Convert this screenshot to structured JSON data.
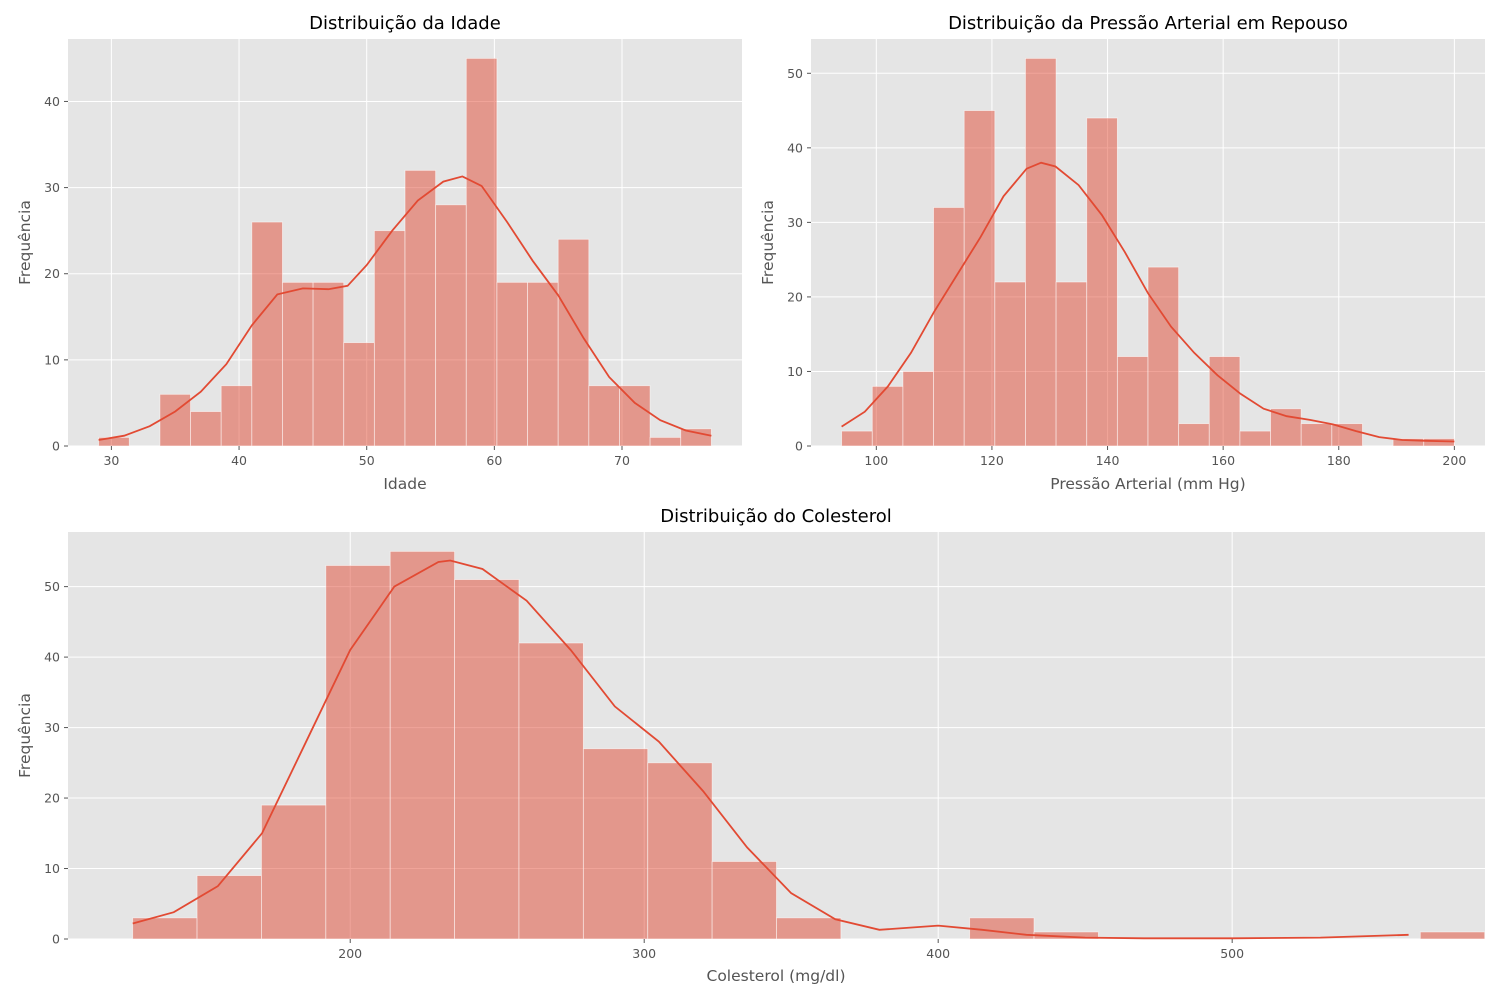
{
  "chart_data": [
    {
      "type": "bar",
      "subtype": "histogram",
      "title": "Distribuição da Idade",
      "xlabel": "Idade",
      "ylabel": "Frequência",
      "xlim": [
        26.6,
        79.4
      ],
      "ylim": [
        0,
        47.25
      ],
      "xticks": [
        30,
        40,
        50,
        60,
        70
      ],
      "yticks": [
        0,
        10,
        20,
        30,
        40
      ],
      "bin_start": 29,
      "bin_width": 2.4,
      "values": [
        1,
        0,
        6,
        4,
        7,
        26,
        19,
        19,
        12,
        25,
        32,
        28,
        45,
        19,
        19,
        24,
        7,
        7,
        1,
        2
      ],
      "kde": {
        "x": [
          29,
          31,
          33,
          35,
          37,
          39,
          41,
          43,
          45,
          47,
          48.5,
          50,
          52,
          54,
          56,
          57.5,
          59,
          61,
          63,
          65,
          67,
          69,
          71,
          73,
          75,
          77
        ],
        "y": [
          0.7,
          1.2,
          2.3,
          4.0,
          6.3,
          9.5,
          14.0,
          17.6,
          18.3,
          18.2,
          18.6,
          21,
          25,
          28.5,
          30.7,
          31.3,
          30.2,
          26,
          21.5,
          17.5,
          12.5,
          8,
          5,
          3,
          1.8,
          1.2
        ]
      }
    },
    {
      "type": "bar",
      "subtype": "histogram",
      "title": "Distribuição da Pressão Arterial em Repouso",
      "xlabel": "Pressão Arterial (mm Hg)",
      "ylabel": "Frequência",
      "xlim": [
        88.7,
        205.3
      ],
      "ylim": [
        0,
        54.6
      ],
      "xticks": [
        100,
        120,
        140,
        160,
        180,
        200
      ],
      "yticks": [
        0,
        10,
        20,
        30,
        40,
        50
      ],
      "bin_start": 94,
      "bin_width": 5.3,
      "values": [
        2,
        8,
        10,
        32,
        45,
        22,
        52,
        22,
        44,
        12,
        24,
        3,
        12,
        2,
        5,
        3,
        3,
        0,
        1,
        1
      ],
      "kde": {
        "x": [
          94,
          98,
          102,
          106,
          110,
          114,
          118,
          122,
          126,
          128.5,
          131,
          135,
          139,
          143,
          147,
          151,
          155,
          159,
          163,
          167,
          171,
          175,
          179,
          183,
          187,
          191,
          195,
          200
        ],
        "y": [
          2.6,
          4.6,
          8.0,
          12.5,
          18.0,
          23.0,
          28.0,
          33.5,
          37.2,
          38.0,
          37.5,
          35.0,
          31.0,
          26.0,
          20.5,
          16.0,
          12.5,
          9.5,
          7.0,
          5.0,
          4.0,
          3.5,
          2.9,
          2.0,
          1.2,
          0.8,
          0.7,
          0.6
        ]
      }
    },
    {
      "type": "bar",
      "subtype": "histogram",
      "title": "Distribuição do Colesterol",
      "xlabel": "Colesterol (mg/dl)",
      "ylabel": "Frequência",
      "xlim": [
        104,
        586
      ],
      "ylim": [
        0,
        57.75
      ],
      "xticks": [
        200,
        300,
        400,
        500
      ],
      "yticks": [
        0,
        10,
        20,
        30,
        40,
        50
      ],
      "bin_start": 126,
      "bin_width": 21.9,
      "values": [
        3,
        9,
        19,
        53,
        55,
        51,
        42,
        27,
        25,
        11,
        3,
        0,
        0,
        3,
        1,
        0,
        0,
        0,
        0,
        0,
        1
      ],
      "kde": {
        "x": [
          126,
          140,
          155,
          170,
          185,
          200,
          215,
          230,
          234,
          245,
          260,
          275,
          290,
          305,
          320,
          335,
          350,
          365,
          380,
          400,
          415,
          430,
          450,
          470,
          500,
          530,
          560
        ],
        "y": [
          2.2,
          3.8,
          7.5,
          15.0,
          28.0,
          41.0,
          50.0,
          53.5,
          53.7,
          52.5,
          48.0,
          41.0,
          33.0,
          28.0,
          21.0,
          13.0,
          6.5,
          2.8,
          1.3,
          1.9,
          1.3,
          0.6,
          0.2,
          0.1,
          0.1,
          0.2,
          0.6
        ]
      }
    }
  ]
}
